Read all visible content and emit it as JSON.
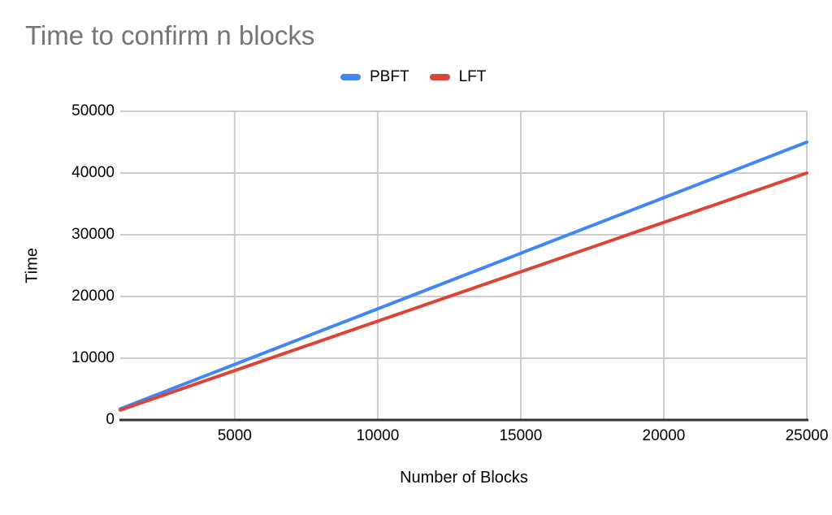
{
  "chart_data": {
    "type": "line",
    "title": "Time to confirm n blocks",
    "xlabel": "Number of Blocks",
    "ylabel": "Time",
    "x": [
      1000,
      5000,
      10000,
      15000,
      20000,
      25000
    ],
    "series": [
      {
        "name": "PBFT",
        "color": "#4285f4",
        "values": [
          1800,
          9000,
          18000,
          27000,
          36000,
          45000
        ]
      },
      {
        "name": "LFT",
        "color": "#db4437",
        "values": [
          1600,
          8000,
          16000,
          24000,
          32000,
          40000
        ]
      }
    ],
    "xlim": [
      1000,
      25000
    ],
    "ylim": [
      0,
      50000
    ],
    "xticks": [
      5000,
      10000,
      15000,
      20000,
      25000
    ],
    "yticks": [
      0,
      10000,
      20000,
      30000,
      40000,
      50000
    ],
    "grid": true,
    "legend_position": "top"
  },
  "colors": {
    "background": "#ffffff",
    "title_text": "#757575",
    "tick_text": "#000000",
    "gridline": "#cccccc",
    "axis_line": "#333333"
  }
}
